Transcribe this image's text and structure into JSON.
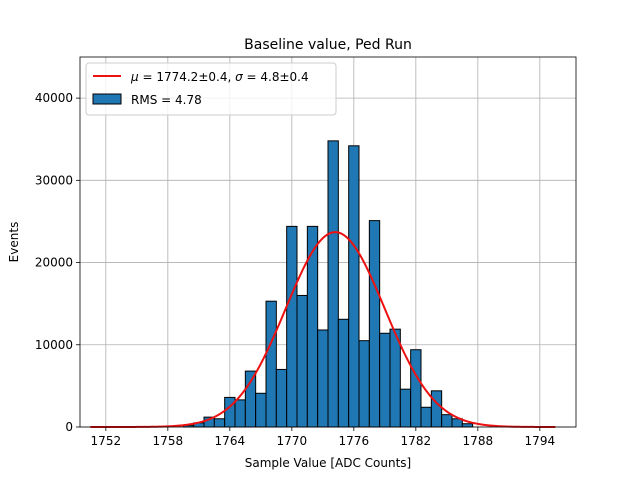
{
  "chart_data": {
    "type": "bar",
    "title": "Baseline value, Ped Run",
    "xlabel": "Sample Value [ADC Counts]",
    "ylabel": "Events",
    "xlim": [
      1749.5,
      1797.5
    ],
    "ylim": [
      0,
      45000
    ],
    "xticks": [
      1752,
      1758,
      1764,
      1770,
      1776,
      1782,
      1788,
      1794
    ],
    "yticks": [
      0,
      10000,
      20000,
      30000,
      40000
    ],
    "grid": true,
    "legend_position": "top-left",
    "histogram": {
      "name": "RMS = 4.78",
      "color": "#1f77b4",
      "edgecolor": "#000000",
      "bin_edges": [
        1759.5,
        1760.5,
        1761.5,
        1762.5,
        1763.5,
        1764.5,
        1765.5,
        1766.5,
        1767.5,
        1768.5,
        1769.5,
        1770.5,
        1771.5,
        1772.5,
        1773.5,
        1774.5,
        1775.5,
        1776.5,
        1777.5,
        1778.5,
        1779.5,
        1780.5,
        1781.5,
        1782.5,
        1783.5,
        1784.5,
        1785.5,
        1786.5,
        1787.5
      ],
      "counts": [
        200,
        500,
        1200,
        1000,
        3600,
        3300,
        6800,
        4100,
        15300,
        7000,
        24400,
        16000,
        24400,
        11800,
        34800,
        13100,
        34200,
        10500,
        25100,
        11400,
        11900,
        4600,
        9400,
        2400,
        4400,
        1500,
        1000,
        400
      ]
    },
    "fit": {
      "label_mu": "1774.2±0.4",
      "label_sigma": "4.8±0.4",
      "color": "#ee1111",
      "mu": 1774.2,
      "sigma": 4.8,
      "amplitude": 23700,
      "x_range": [
        1750.5,
        1795.5
      ]
    }
  }
}
